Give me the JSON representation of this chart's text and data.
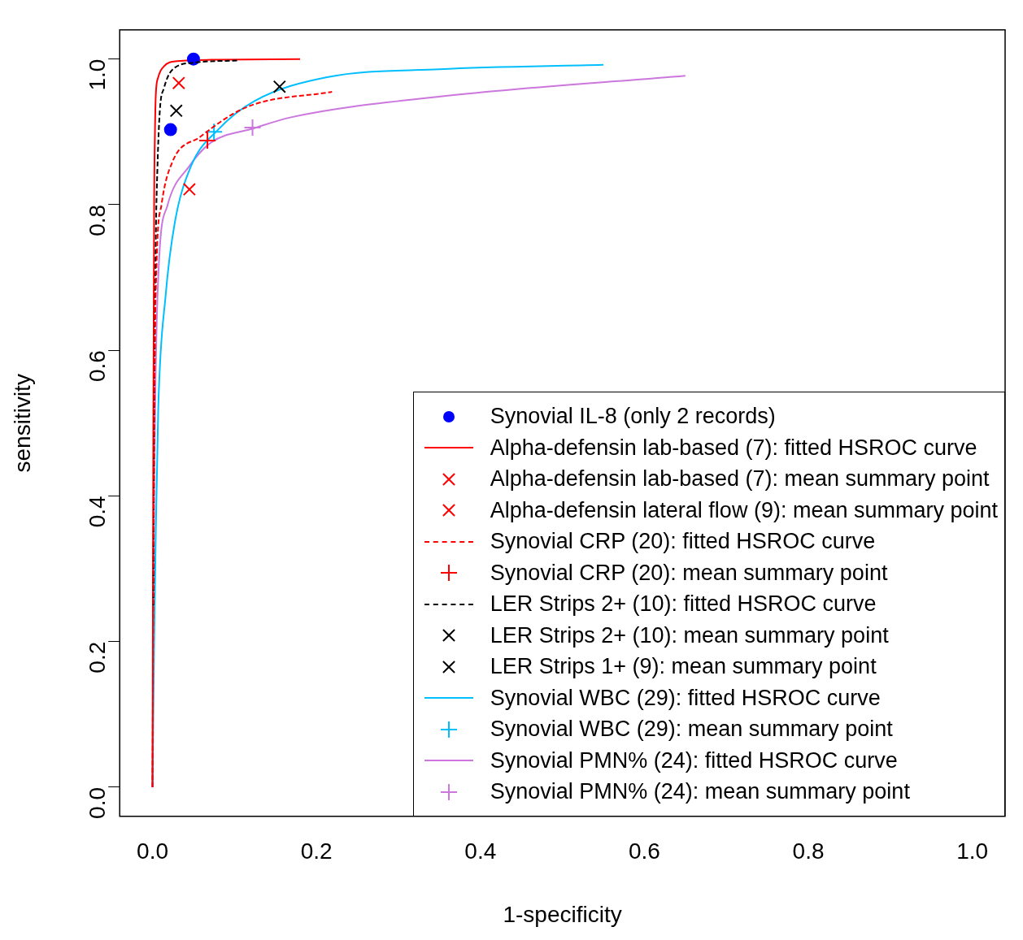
{
  "chart_data": {
    "type": "scatter",
    "xlabel": "1-specificity",
    "ylabel": "sensitivity",
    "xlim": [
      -0.04,
      1.04
    ],
    "ylim": [
      -0.04,
      1.04
    ],
    "xticks": [
      {
        "value": 0,
        "label": "0.0"
      },
      {
        "value": 0.2,
        "label": "0.2"
      },
      {
        "value": 0.4,
        "label": "0.4"
      },
      {
        "value": 0.6,
        "label": "0.6"
      },
      {
        "value": 0.8,
        "label": "0.8"
      },
      {
        "value": 1,
        "label": "1.0"
      }
    ],
    "yticks": [
      {
        "value": 0,
        "label": "0.0"
      },
      {
        "value": 0.2,
        "label": "0.2"
      },
      {
        "value": 0.4,
        "label": "0.4"
      },
      {
        "value": 0.6,
        "label": "0.6"
      },
      {
        "value": 0.8,
        "label": "0.8"
      },
      {
        "value": 1,
        "label": "1.0"
      }
    ],
    "legend": "bottom right",
    "series": [
      {
        "name": "Synovial IL-8 (only 2 records)",
        "type": "scatter",
        "marker": "circle",
        "color": "#0000ff",
        "x": [
          0.05,
          0.022
        ],
        "values": [
          1.0,
          0.903
        ]
      },
      {
        "name": "Alpha-defensin lab-based (7): fitted HSROC curve",
        "type": "line",
        "line_style": "solid",
        "color": "#ff0000",
        "x": [
          0,
          0.001,
          0.002,
          0.003,
          0.004,
          0.007,
          0.014,
          0.03,
          0.08,
          0.18
        ],
        "values": [
          0,
          0.5,
          0.8,
          0.9,
          0.95,
          0.975,
          0.99,
          0.997,
          0.999,
          1.0
        ]
      },
      {
        "name": "Alpha-defensin lab-based (7): mean summary point",
        "type": "scatter",
        "marker": "cross",
        "color": "#ff0000",
        "x": [
          0.032
        ],
        "values": [
          0.967
        ]
      },
      {
        "name": "Alpha-defensin lateral flow (9): mean summary point",
        "type": "scatter",
        "marker": "cross",
        "color": "#ff0000",
        "x": [
          0.045
        ],
        "values": [
          0.821
        ]
      },
      {
        "name": "Synovial CRP (20): fitted HSROC curve",
        "type": "line",
        "line_style": "dashed",
        "color": "#ff0000",
        "x": [
          0,
          0.002,
          0.005,
          0.011,
          0.024,
          0.058,
          0.115,
          0.219
        ],
        "values": [
          0,
          0.5,
          0.72,
          0.8,
          0.858,
          0.893,
          0.934,
          0.955
        ]
      },
      {
        "name": "Synovial CRP (20): mean summary point",
        "type": "scatter",
        "marker": "plus",
        "color": "#ff0000",
        "x": [
          0.067
        ],
        "values": [
          0.888
        ]
      },
      {
        "name": "LER Strips 2+ (10): fitted HSROC curve",
        "type": "line",
        "line_style": "dashed",
        "color": "#000000",
        "x": [
          0.001,
          0.002,
          0.004,
          0.006,
          0.009,
          0.014,
          0.024,
          0.05,
          0.105
        ],
        "values": [
          0.25,
          0.5,
          0.75,
          0.85,
          0.93,
          0.96,
          0.985,
          0.995,
          0.998
        ]
      },
      {
        "name": "LER Strips 2+ (10): mean summary point",
        "type": "scatter",
        "marker": "cross",
        "color": "#000000",
        "x": [
          0.029
        ],
        "values": [
          0.929
        ]
      },
      {
        "name": "LER Strips 1+ (9): mean summary point",
        "type": "scatter",
        "marker": "cross",
        "color": "#000000",
        "x": [
          0.155
        ],
        "values": [
          0.962
        ]
      },
      {
        "name": "Synovial WBC (29): fitted HSROC curve",
        "type": "line",
        "line_style": "solid",
        "color": "#00bfff",
        "x": [
          0,
          0.002,
          0.004,
          0.007,
          0.016,
          0.027,
          0.047,
          0.08,
          0.124,
          0.213,
          0.35,
          0.55
        ],
        "values": [
          0,
          0.2,
          0.35,
          0.52,
          0.675,
          0.774,
          0.853,
          0.903,
          0.942,
          0.975,
          0.986,
          0.992
        ]
      },
      {
        "name": "Synovial WBC (29): mean summary point",
        "type": "scatter",
        "marker": "plus",
        "color": "#00bfff",
        "x": [
          0.075
        ],
        "values": [
          0.9
        ]
      },
      {
        "name": "Synovial PMN% (24): fitted HSROC curve",
        "type": "line",
        "line_style": "solid",
        "color": "#cc77dd",
        "x": [
          0,
          0.002,
          0.007,
          0.018,
          0.045,
          0.071,
          0.124,
          0.169,
          0.347,
          0.65
        ],
        "values": [
          0,
          0.4,
          0.7,
          0.798,
          0.853,
          0.885,
          0.905,
          0.92,
          0.948,
          0.977
        ]
      },
      {
        "name": "Synovial PMN% (24): mean summary point",
        "type": "scatter",
        "marker": "plus",
        "color": "#cc77dd",
        "x": [
          0.122
        ],
        "values": [
          0.906
        ]
      }
    ]
  }
}
